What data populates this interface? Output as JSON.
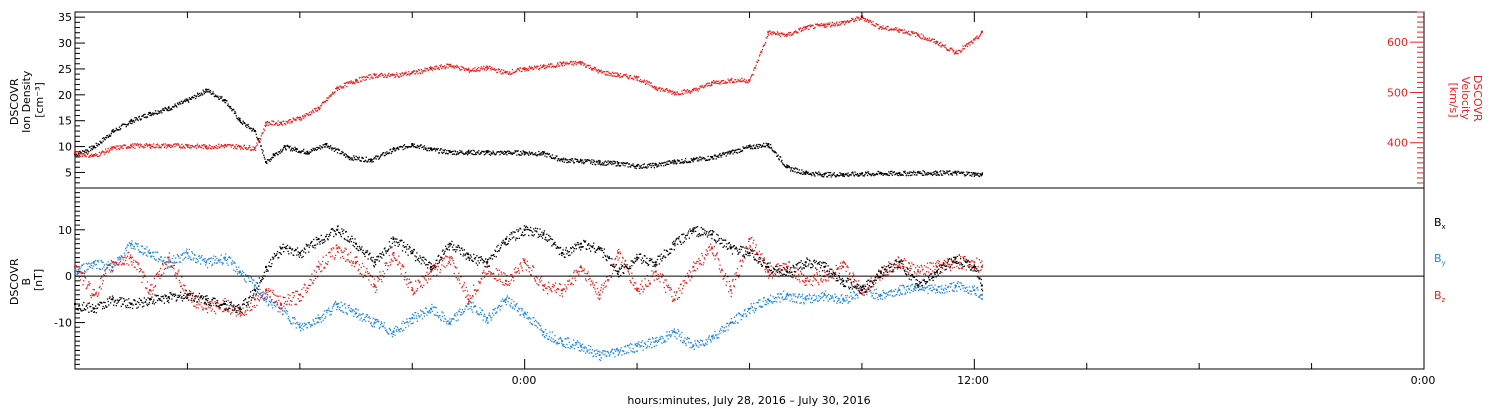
{
  "figure": {
    "x_axis_label": "hours:minutes, July 28, 2016 – July 30, 2016",
    "x_tick_labels": [
      "0:00",
      "12:00",
      "0:00"
    ]
  },
  "chart_data": [
    {
      "type": "scatter",
      "title": "",
      "xlabel": "",
      "x_range_hours": [
        -12,
        24
      ],
      "left_axis": {
        "label_lines": [
          "DSCOVR",
          "Ion Density",
          "[cm⁻³]"
        ],
        "ylim": [
          2,
          36
        ],
        "ticks": [
          5,
          10,
          15,
          20,
          25,
          30,
          35
        ],
        "color": "#000000"
      },
      "right_axis": {
        "label_lines": [
          "DSCOVR",
          "Velocity",
          "[km/s]"
        ],
        "ylim": [
          310,
          660
        ],
        "ticks": [
          400,
          500,
          600
        ],
        "color": "#e8231f"
      },
      "series": [
        {
          "color": "#000000",
          "axis": "left",
          "x": [
            -12,
            -11.5,
            -11,
            -10.5,
            -10,
            -9.5,
            -9,
            -8.5,
            -8,
            -7.6,
            -7.2,
            -6.9,
            -6.7,
            -6.4,
            -6.1,
            -5.8,
            -5.3,
            -4.7,
            -4.1,
            -3.5,
            -3,
            -2.5,
            -2,
            -1.5,
            -1,
            -0.5,
            0,
            0.5,
            1,
            1.5,
            2,
            2.5,
            3,
            3.5,
            4,
            4.5,
            5,
            5.5,
            6,
            6.5,
            7,
            7.5,
            8,
            8.5,
            9,
            9.5,
            10,
            10.5,
            11,
            11.5,
            12,
            12.2
          ],
          "y": [
            8.5,
            10,
            13,
            15,
            16.5,
            17.5,
            19,
            21,
            19,
            15,
            13,
            7,
            8.5,
            10,
            9.5,
            9,
            10.5,
            8,
            7.5,
            9.5,
            10.5,
            9.5,
            9,
            9,
            8.9,
            8.9,
            8.9,
            8.7,
            7.5,
            7.3,
            7,
            6.8,
            6.3,
            6.5,
            7.2,
            7.5,
            8,
            9,
            10,
            10.5,
            6,
            5,
            4.7,
            4.7,
            4.8,
            4.9,
            4.9,
            5,
            5,
            5,
            4.8,
            4.6
          ]
        },
        {
          "color": "#e8231f",
          "axis": "right",
          "x": [
            -12,
            -11.5,
            -11,
            -10.5,
            -10,
            -9.5,
            -9,
            -8.5,
            -8,
            -7.6,
            -7.2,
            -6.9,
            -6.5,
            -6,
            -5.5,
            -5,
            -4.5,
            -4,
            -3.5,
            -3,
            -2.5,
            -2,
            -1.5,
            -1,
            -0.5,
            0,
            0.5,
            1,
            1.5,
            2,
            2.5,
            3,
            3.5,
            4,
            4.5,
            5,
            5.5,
            6,
            6.5,
            7,
            7.5,
            8,
            8.5,
            9,
            9.5,
            10,
            10.5,
            11,
            11.5,
            12,
            12.2
          ],
          "y": [
            380,
            375,
            390,
            395,
            395,
            395,
            395,
            393,
            395,
            393,
            390,
            440,
            440,
            450,
            470,
            510,
            525,
            535,
            535,
            540,
            548,
            555,
            545,
            550,
            540,
            548,
            552,
            558,
            560,
            542,
            535,
            530,
            510,
            500,
            505,
            520,
            525,
            525,
            620,
            615,
            630,
            635,
            640,
            650,
            630,
            625,
            615,
            600,
            580,
            605,
            620
          ]
        }
      ]
    },
    {
      "type": "scatter",
      "title": "",
      "xlabel": "",
      "x_range_hours": [
        -12,
        24
      ],
      "left_axis": {
        "label_lines": [
          "DSCOVR",
          "B",
          "[nT]"
        ],
        "ylim": [
          -20,
          19
        ],
        "ticks": [
          -10,
          0,
          10
        ],
        "color": "#000000"
      },
      "legend_placement": "right",
      "series": [
        {
          "name": "Bx",
          "legend_main": "B",
          "legend_sub": "x",
          "color": "#000000",
          "x": [
            -12,
            -11.5,
            -11,
            -10.5,
            -10,
            -9.5,
            -9,
            -8.5,
            -8,
            -7.6,
            -7.2,
            -6.9,
            -6.5,
            -6,
            -5.5,
            -5,
            -4.5,
            -4,
            -3.5,
            -3,
            -2.5,
            -2,
            -1.5,
            -1,
            -0.5,
            0,
            0.5,
            1,
            1.5,
            2,
            2.5,
            3,
            3.5,
            4,
            4.5,
            5,
            5.5,
            6,
            6.5,
            7,
            7.5,
            8,
            8.5,
            9,
            9.5,
            10,
            10.5,
            11,
            11.5,
            12,
            12.2
          ],
          "y": [
            -6,
            -7,
            -5,
            -6,
            -5,
            -4.5,
            -4,
            -5,
            -6,
            -7,
            -3,
            2,
            6,
            5,
            8,
            10,
            7,
            3,
            8,
            5,
            2,
            7,
            4,
            3,
            8,
            10,
            9,
            5,
            7,
            6,
            1,
            4,
            3,
            7,
            10,
            9,
            6,
            5,
            2,
            1,
            3,
            2,
            -1,
            -3,
            1,
            3,
            -2,
            1,
            4,
            2,
            -2
          ]
        },
        {
          "name": "By",
          "legend_main": "B",
          "legend_sub": "y",
          "color": "#1e88e5",
          "x": [
            -12,
            -11.5,
            -11,
            -10.5,
            -10,
            -9.5,
            -9,
            -8.5,
            -8,
            -7.6,
            -7.2,
            -6.9,
            -6.5,
            -6,
            -5.5,
            -5,
            -4.5,
            -4,
            -3.5,
            -3,
            -2.5,
            -2,
            -1.5,
            -1,
            -0.5,
            0,
            0.5,
            1,
            1.5,
            2,
            2.5,
            3,
            3.5,
            4,
            4.5,
            5,
            5.5,
            6,
            6.5,
            7,
            7.5,
            8,
            8.5,
            9,
            9.5,
            10,
            10.5,
            11,
            11.5,
            12,
            12.2
          ],
          "y": [
            1,
            3,
            2,
            7,
            5,
            3,
            5,
            3,
            4,
            1,
            -2,
            -5,
            -7,
            -11,
            -9,
            -6,
            -8,
            -10,
            -12,
            -9,
            -7,
            -10,
            -6,
            -9,
            -5,
            -8,
            -12,
            -14,
            -15,
            -17,
            -16,
            -15,
            -14,
            -12,
            -15,
            -13,
            -10,
            -7,
            -5,
            -4,
            -5,
            -4,
            -5,
            -3,
            -4,
            -3,
            -2,
            -3,
            -2,
            -3,
            -4
          ]
        },
        {
          "name": "Bz",
          "legend_main": "B",
          "legend_sub": "z",
          "color": "#e8231f",
          "x": [
            -12,
            -11.5,
            -11,
            -10.5,
            -10,
            -9.5,
            -9,
            -8.5,
            -8,
            -7.6,
            -7.2,
            -6.9,
            -6.5,
            -6,
            -5.5,
            -5,
            -4.5,
            -4,
            -3.5,
            -3,
            -2.5,
            -2,
            -1.5,
            -1,
            -0.5,
            0,
            0.5,
            1,
            1.5,
            2,
            2.5,
            3,
            3.5,
            4,
            4.5,
            5,
            5.5,
            6,
            6.5,
            7,
            7.5,
            8,
            8.5,
            9,
            9.5,
            10,
            10.5,
            11,
            11.5,
            12,
            12.2
          ],
          "y": [
            2,
            -4,
            3,
            4,
            -3,
            4,
            -4,
            -7,
            -6,
            -8,
            -5,
            -3,
            -6,
            -4,
            2,
            6,
            3,
            -2,
            5,
            -3,
            1,
            4,
            -5,
            2,
            -1,
            3,
            -2,
            -3,
            2,
            -4,
            5,
            -3,
            1,
            -5,
            2,
            6,
            -3,
            8,
            1,
            2,
            -1,
            0,
            2,
            -3,
            1,
            3,
            1,
            2,
            3,
            3,
            2
          ]
        }
      ]
    }
  ]
}
